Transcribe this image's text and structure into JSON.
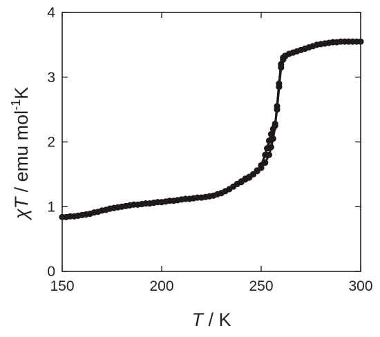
{
  "chart_data": {
    "type": "scatter",
    "title": "",
    "xlabel": {
      "symbol": "T",
      "rest": " / K"
    },
    "ylabel": {
      "symbol": "χT",
      "rest": " / emu mol",
      "sup": "-1",
      "tail": "K"
    },
    "xlim": [
      150,
      300
    ],
    "ylim": [
      0,
      4
    ],
    "xticks": [
      "150",
      "200",
      "250",
      "300"
    ],
    "yticks": [
      "0",
      "1",
      "2",
      "3",
      "4"
    ],
    "grid": false,
    "legend": "none",
    "marker_color": "#1f1a1a",
    "series": [
      {
        "x": [
          150,
          152,
          154,
          156,
          158,
          160,
          162,
          164,
          166,
          168,
          170,
          172,
          174,
          176,
          178,
          180,
          182,
          184,
          186,
          188,
          190,
          192,
          194,
          196,
          198,
          200,
          202,
          204,
          206,
          208,
          210,
          212,
          214,
          216,
          218,
          220,
          222,
          224,
          226,
          228,
          230,
          232,
          234,
          236,
          238,
          240,
          242,
          244,
          246,
          248,
          250,
          252,
          254,
          255,
          256,
          257,
          258,
          259,
          260,
          261,
          262,
          264,
          266,
          268,
          270,
          272,
          274,
          276,
          278,
          280,
          282,
          284,
          286,
          288,
          290,
          292,
          294,
          296,
          298,
          300
        ],
        "y": [
          0.84,
          0.84,
          0.85,
          0.85,
          0.86,
          0.87,
          0.88,
          0.89,
          0.91,
          0.92,
          0.94,
          0.95,
          0.97,
          0.98,
          0.99,
          1.0,
          1.01,
          1.02,
          1.03,
          1.03,
          1.04,
          1.05,
          1.05,
          1.06,
          1.07,
          1.07,
          1.08,
          1.09,
          1.09,
          1.1,
          1.11,
          1.12,
          1.12,
          1.13,
          1.14,
          1.14,
          1.15,
          1.16,
          1.17,
          1.19,
          1.21,
          1.24,
          1.27,
          1.31,
          1.35,
          1.39,
          1.43,
          1.46,
          1.5,
          1.55,
          1.6,
          1.68,
          1.8,
          1.92,
          2.05,
          2.25,
          2.55,
          2.9,
          3.2,
          3.3,
          3.33,
          3.36,
          3.38,
          3.4,
          3.42,
          3.44,
          3.46,
          3.48,
          3.5,
          3.51,
          3.52,
          3.53,
          3.54,
          3.54,
          3.55,
          3.55,
          3.55,
          3.55,
          3.55,
          3.55
        ]
      },
      {
        "x": [
          240,
          242,
          244,
          246,
          248,
          250,
          252,
          253,
          254,
          255,
          256,
          257,
          258,
          259,
          260,
          261,
          262
        ],
        "y": [
          1.38,
          1.42,
          1.45,
          1.5,
          1.56,
          1.64,
          1.8,
          1.9,
          2.02,
          2.12,
          2.2,
          2.28,
          2.5,
          2.85,
          3.15,
          3.27,
          3.32
        ]
      }
    ]
  }
}
